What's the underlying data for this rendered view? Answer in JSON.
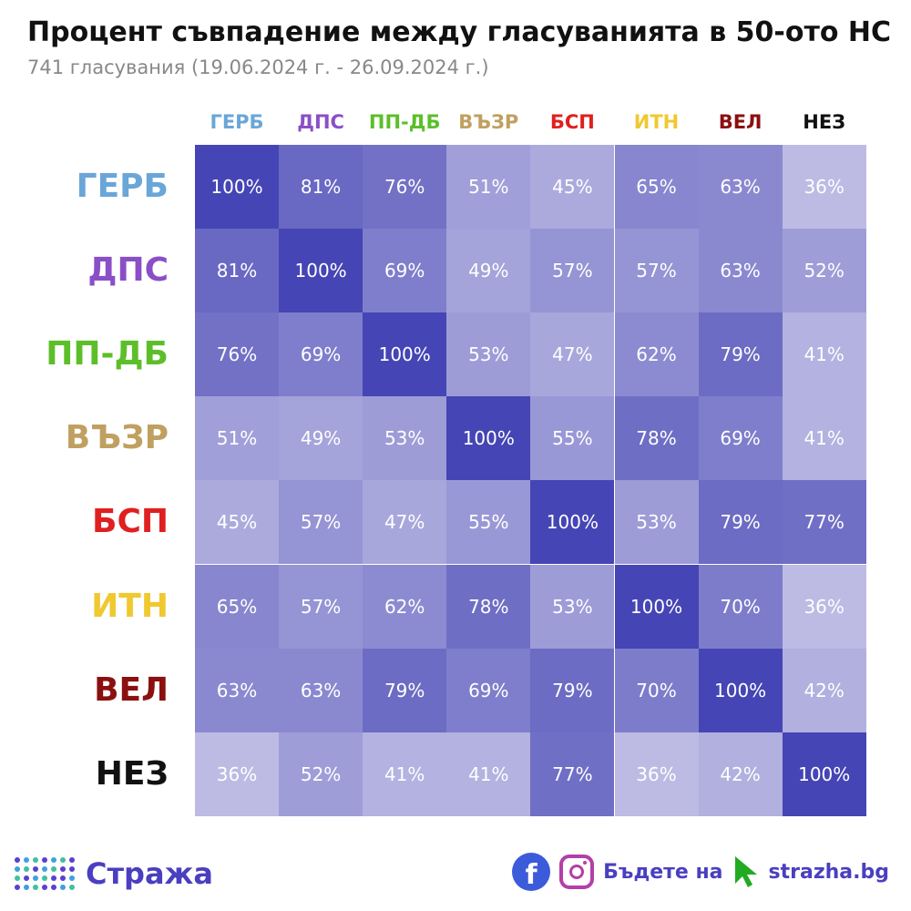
{
  "chart_data": {
    "type": "heatmap",
    "title": "Процент съвпадение между гласуванията в 50-ото НС",
    "subtitle": "741 гласувания (19.06.2024 г. - 26.09.2024 г.)",
    "categories": [
      "ГЕРБ",
      "ДПС",
      "ПП-ДБ",
      "ВЪЗР",
      "БСП",
      "ИТН",
      "ВЕЛ",
      "НЕЗ"
    ],
    "category_colors": [
      "#6aa6d8",
      "#8a4fc7",
      "#5cbf2a",
      "#c0a060",
      "#e02020",
      "#f0c830",
      "#8b1010",
      "#111111"
    ],
    "values": [
      [
        100,
        81,
        76,
        51,
        45,
        65,
        63,
        36
      ],
      [
        81,
        100,
        69,
        49,
        57,
        57,
        63,
        52
      ],
      [
        76,
        69,
        100,
        53,
        47,
        62,
        79,
        41
      ],
      [
        51,
        49,
        53,
        100,
        55,
        78,
        69,
        41
      ],
      [
        45,
        57,
        47,
        55,
        100,
        53,
        79,
        77
      ],
      [
        65,
        57,
        62,
        78,
        53,
        100,
        70,
        36
      ],
      [
        63,
        63,
        79,
        69,
        79,
        70,
        100,
        42
      ],
      [
        36,
        52,
        41,
        41,
        77,
        36,
        42,
        100
      ]
    ],
    "value_suffix": "%",
    "color_low": "#c8c6e8",
    "color_high": "#4545b5"
  },
  "footer": {
    "brand": "Стража",
    "cta": "Бъдете на",
    "site": "strazha.bg",
    "brand_color": "#4a3fc0"
  }
}
